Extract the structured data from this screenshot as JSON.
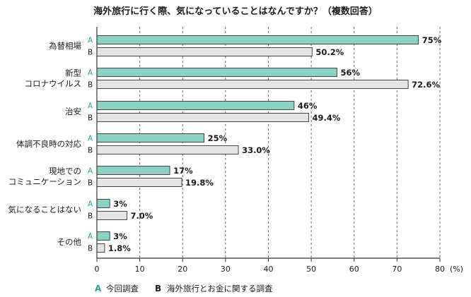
{
  "chart_data": {
    "type": "bar",
    "orientation": "horizontal",
    "title": "海外旅行に行く際、気になっていることはなんですか？（複数回答）",
    "categories": [
      [
        "為替相場"
      ],
      [
        "新型",
        "コロナウイルス"
      ],
      [
        "治安"
      ],
      [
        "体調不良時の対応"
      ],
      [
        "現地での",
        "コミュニケーション"
      ],
      [
        "気になることはない"
      ],
      [
        "その他"
      ]
    ],
    "series": [
      {
        "key": "A",
        "name": "今回調査",
        "color": "#8dd1c6",
        "values": [
          75,
          56,
          46,
          25,
          17,
          3,
          3
        ],
        "labels": [
          "75%",
          "56%",
          "46%",
          "25%",
          "17%",
          "3%",
          "3%"
        ]
      },
      {
        "key": "B",
        "name": "海外旅行とお金に関する調査",
        "color": "#e4e4e4",
        "values": [
          50.2,
          72.6,
          49.4,
          33.0,
          19.8,
          7.0,
          1.8
        ],
        "labels": [
          "50.2%",
          "72.6%",
          "49.4%",
          "33.0%",
          "19.8%",
          "7.0%",
          "1.8%"
        ]
      }
    ],
    "xlim": [
      0,
      80
    ],
    "xticks": [
      "0",
      "10",
      "20",
      "30",
      "40",
      "50",
      "60",
      "70",
      "80"
    ],
    "xunit": "(%)",
    "grid": true
  }
}
